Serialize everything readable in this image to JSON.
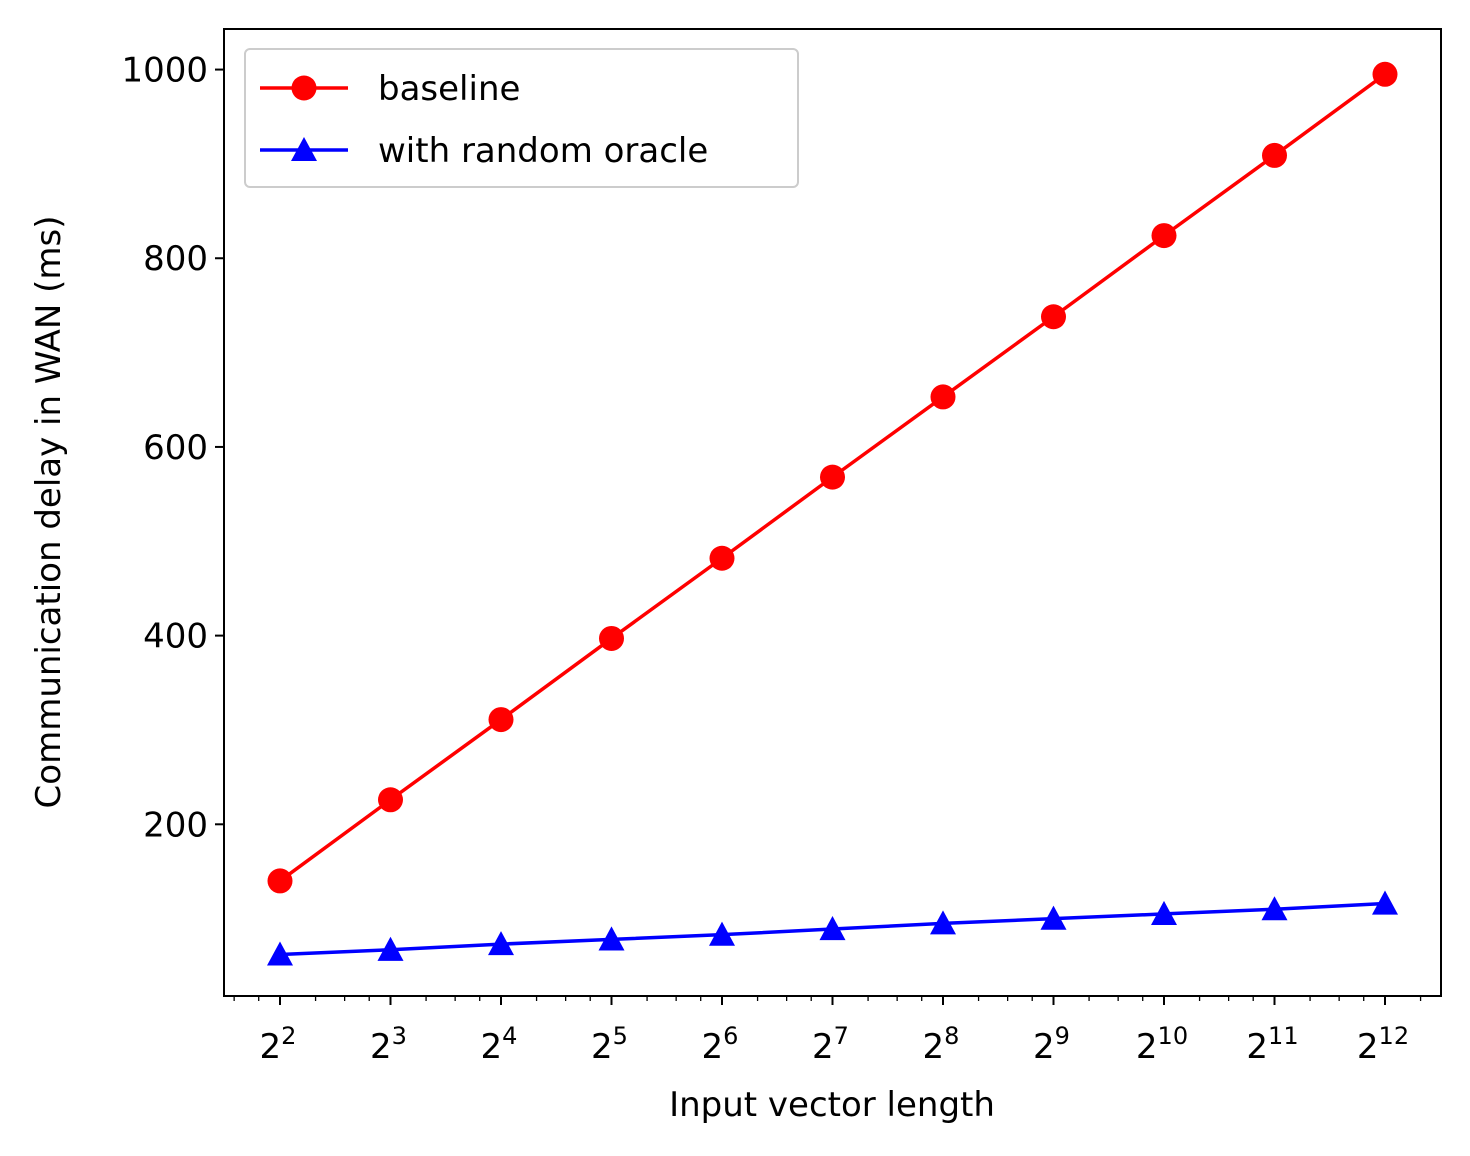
{
  "chart_data": {
    "type": "line",
    "title": "",
    "xlabel": "Input vector length",
    "ylabel": "Communication delay in WAN (ms)",
    "x_scale": "log2",
    "x": [
      4,
      8,
      16,
      32,
      64,
      128,
      256,
      512,
      1024,
      2048,
      4096
    ],
    "x_tick_labels": [
      {
        "base": "2",
        "exp": "2"
      },
      {
        "base": "2",
        "exp": "3"
      },
      {
        "base": "2",
        "exp": "4"
      },
      {
        "base": "2",
        "exp": "5"
      },
      {
        "base": "2",
        "exp": "6"
      },
      {
        "base": "2",
        "exp": "7"
      },
      {
        "base": "2",
        "exp": "8"
      },
      {
        "base": "2",
        "exp": "9"
      },
      {
        "base": "2",
        "exp": "10"
      },
      {
        "base": "2",
        "exp": "11"
      },
      {
        "base": "2",
        "exp": "12"
      }
    ],
    "y_ticks": [
      200,
      400,
      600,
      800,
      1000
    ],
    "ylim": [
      18,
      1043
    ],
    "grid": false,
    "legend_position": "upper-left",
    "series": [
      {
        "name": "baseline",
        "color": "#ff0000",
        "marker": "circle",
        "values": [
          140,
          226,
          311,
          397,
          482,
          568,
          653,
          738,
          824,
          909,
          995
        ]
      },
      {
        "name": "with random oracle",
        "color": "#0000ff",
        "marker": "triangle",
        "values": [
          62,
          67,
          73,
          78,
          83,
          89,
          95,
          100,
          105,
          110,
          116
        ]
      }
    ]
  }
}
